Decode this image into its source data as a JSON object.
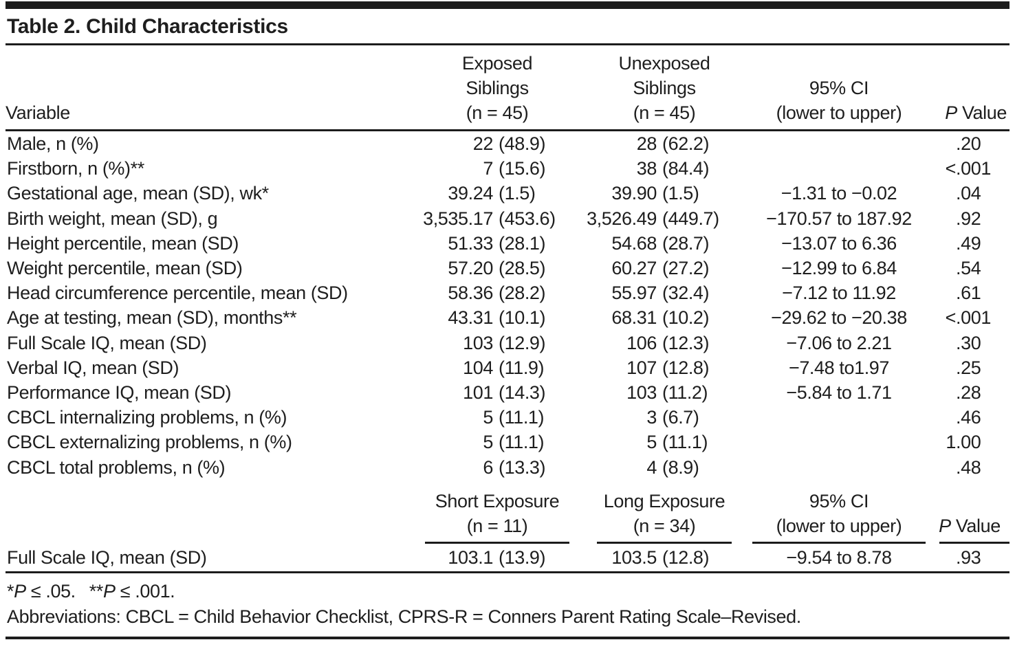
{
  "title": "Table 2. Child Characteristics",
  "header": {
    "variable": "Variable",
    "exposed": [
      "Exposed",
      "Siblings",
      "(n = 45)"
    ],
    "unexposed": [
      "Unexposed",
      "Siblings",
      "(n = 45)"
    ],
    "ci": [
      "95% CI",
      "(lower to upper)"
    ],
    "p_italic": "P",
    "p_rest": " Value"
  },
  "rows": [
    {
      "label": "Male, n (%)",
      "e": "22",
      "e_sd": "(48.9)",
      "u": "28",
      "u_sd": "(62.2)",
      "ci": "",
      "p_pre": "",
      "p_frac": ".20"
    },
    {
      "label": "Firstborn, n (%)**",
      "e": "7",
      "e_sd": "(15.6)",
      "u": "38",
      "u_sd": "(84.4)",
      "ci": "",
      "p_pre": "<",
      "p_frac": ".001"
    },
    {
      "label": "Gestational age, mean (SD), wk*",
      "e": "39.24",
      "e_sd": "(1.5)",
      "u": "39.90",
      "u_sd": "(1.5)",
      "ci": "−1.31 to −0.02",
      "p_pre": "",
      "p_frac": ".04"
    },
    {
      "label": "Birth weight, mean (SD), g",
      "e": "3,535.17",
      "e_sd": "(453.6)",
      "u": "3,526.49",
      "u_sd": "(449.7)",
      "ci": "−170.57 to 187.92",
      "p_pre": "",
      "p_frac": ".92"
    },
    {
      "label": "Height percentile, mean (SD)",
      "e": "51.33",
      "e_sd": "(28.1)",
      "u": "54.68",
      "u_sd": "(28.7)",
      "ci": "−13.07 to 6.36",
      "p_pre": "",
      "p_frac": ".49"
    },
    {
      "label": "Weight percentile, mean (SD)",
      "e": "57.20",
      "e_sd": "(28.5)",
      "u": "60.27",
      "u_sd": "(27.2)",
      "ci": "−12.99 to 6.84",
      "p_pre": "",
      "p_frac": ".54"
    },
    {
      "label": "Head circumference percentile, mean (SD)",
      "e": "58.36",
      "e_sd": "(28.2)",
      "u": "55.97",
      "u_sd": "(32.4)",
      "ci": "−7.12 to 11.92",
      "p_pre": "",
      "p_frac": ".61"
    },
    {
      "label": "Age at testing, mean (SD), months**",
      "e": "43.31",
      "e_sd": "(10.1)",
      "u": "68.31",
      "u_sd": "(10.2)",
      "ci": "−29.62 to −20.38",
      "p_pre": "<",
      "p_frac": ".001"
    },
    {
      "label": "Full Scale IQ, mean (SD)",
      "e": "103",
      "e_sd": "(12.9)",
      "u": "106",
      "u_sd": "(12.3)",
      "ci": "−7.06 to 2.21",
      "p_pre": "",
      "p_frac": ".30"
    },
    {
      "label": "Verbal IQ, mean (SD)",
      "e": "104",
      "e_sd": "(11.9)",
      "u": "107",
      "u_sd": "(12.8)",
      "ci": "−7.48 to1.97",
      "p_pre": "",
      "p_frac": ".25"
    },
    {
      "label": "Performance IQ, mean (SD)",
      "e": "101",
      "e_sd": "(14.3)",
      "u": "103",
      "u_sd": "(11.2)",
      "ci": "−5.84 to 1.71",
      "p_pre": "",
      "p_frac": ".28"
    },
    {
      "label": "CBCL internalizing problems, n (%)",
      "e": "5",
      "e_sd": "(11.1)",
      "u": "3",
      "u_sd": "(6.7)",
      "ci": "",
      "p_pre": "",
      "p_frac": ".46"
    },
    {
      "label": "CBCL externalizing problems, n (%)",
      "e": "5",
      "e_sd": "(11.1)",
      "u": "5",
      "u_sd": "(11.1)",
      "ci": "",
      "p_pre": "1",
      "p_frac": ".00"
    },
    {
      "label": "CBCL total problems, n (%)",
      "e": "6",
      "e_sd": "(13.3)",
      "u": "4",
      "u_sd": "(8.9)",
      "ci": "",
      "p_pre": "",
      "p_frac": ".48"
    }
  ],
  "section2": {
    "short": [
      "Short Exposure",
      "(n = 11)"
    ],
    "long": [
      "Long Exposure",
      "(n = 34)"
    ],
    "ci": [
      "95% CI",
      "(lower to upper)"
    ],
    "p_italic": "P",
    "p_rest": " Value",
    "row": {
      "label": "Full Scale IQ, mean (SD)",
      "e": "103.1",
      "e_sd": "(13.9)",
      "u": "103.5",
      "u_sd": "(12.8)",
      "ci": "−9.54 to 8.78",
      "p_pre": "",
      "p_frac": ".93"
    }
  },
  "footnotes": {
    "sig": {
      "a1": "*",
      "p1": "P",
      "t1": " ≤ .05.",
      "a2": "**",
      "p2": "P",
      "t2": " ≤ .001."
    },
    "abbr": "Abbreviations: CBCL = Child Behavior Checklist, CPRS-R = Conners Parent Rating Scale–Revised."
  }
}
